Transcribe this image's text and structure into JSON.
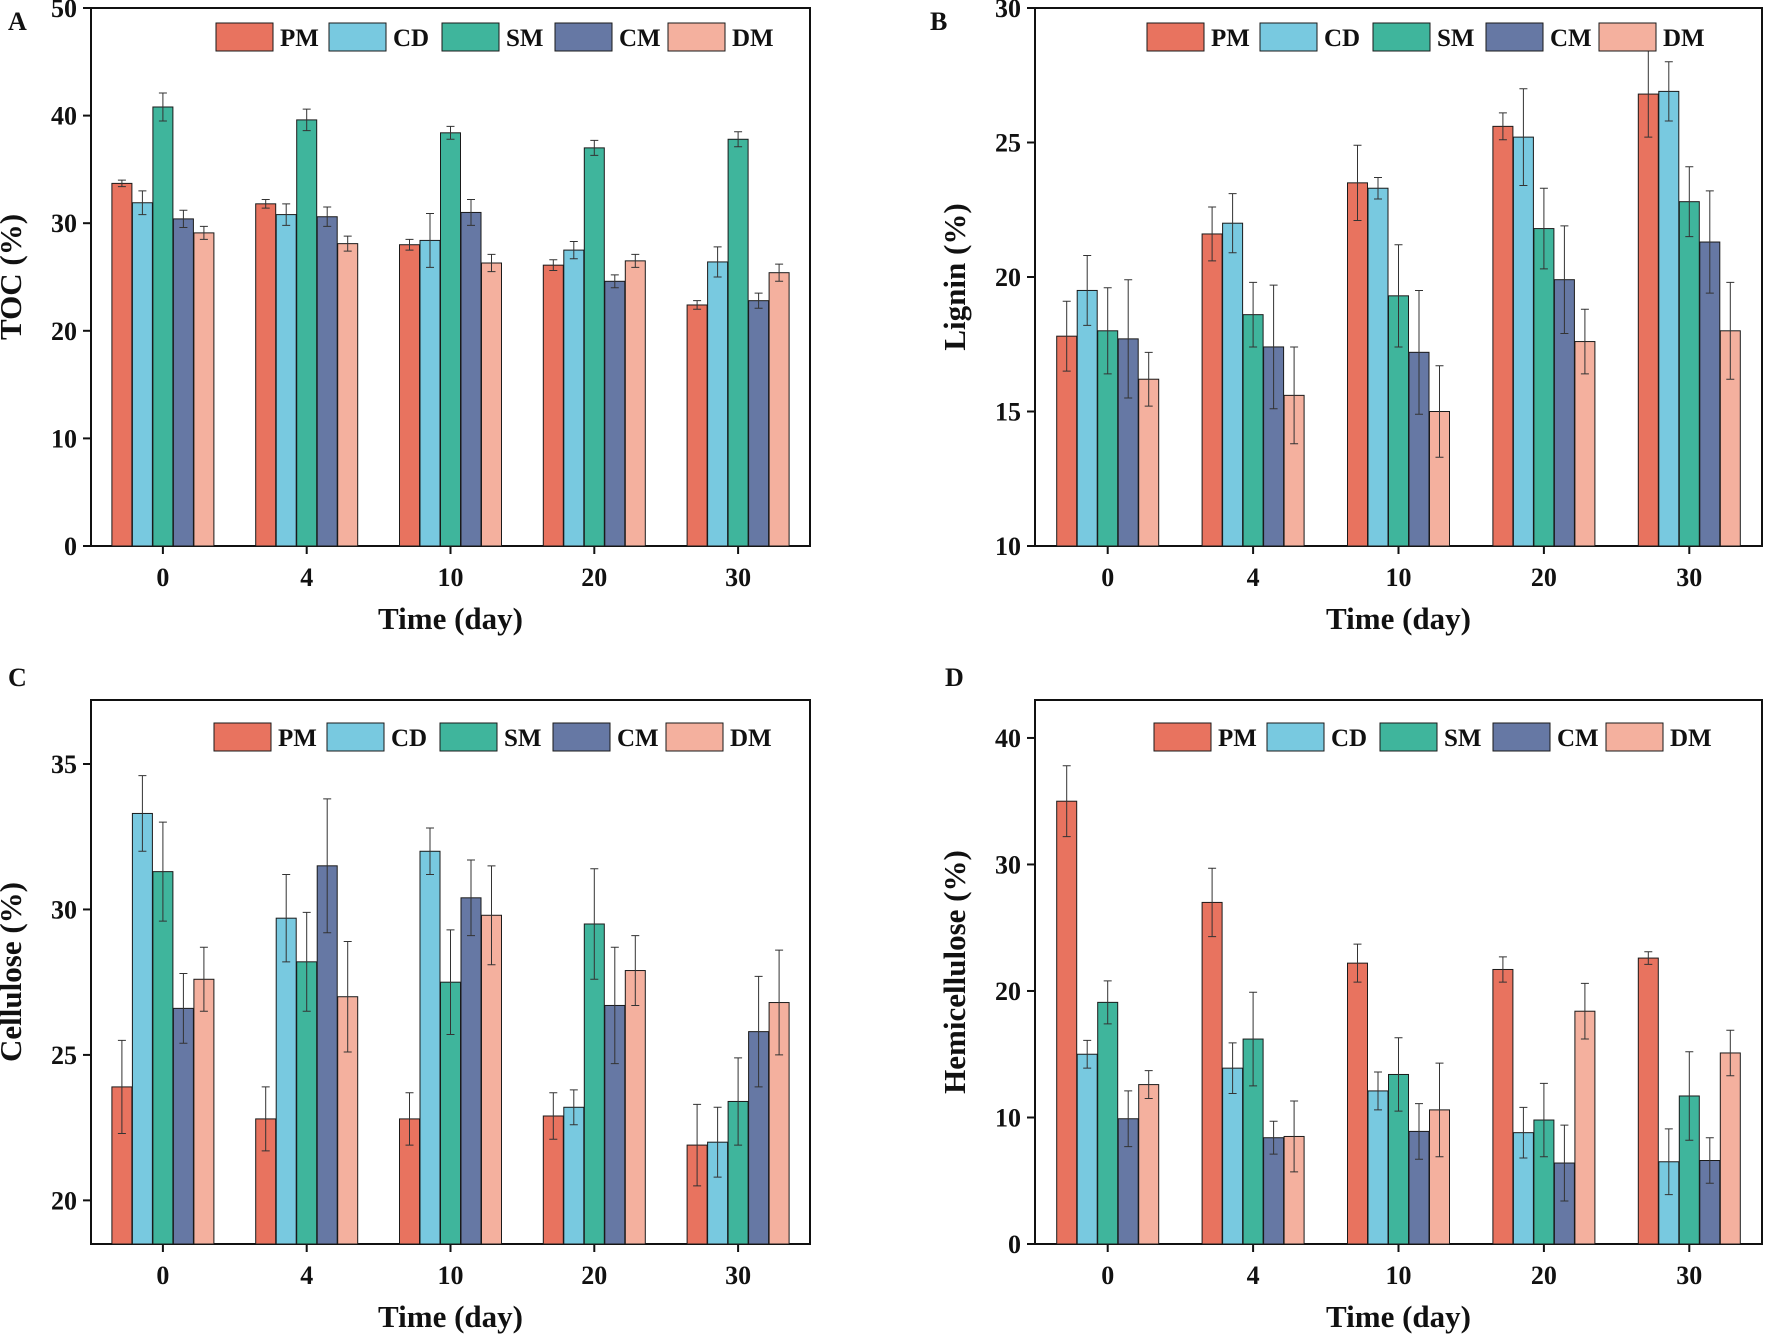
{
  "colors": {
    "PM": "#E8735F",
    "CD": "#78C9E0",
    "SM": "#3FB59C",
    "CM": "#6678A4",
    "DM": "#F4B09E"
  },
  "chart_data": [
    {
      "panel_label": "A",
      "type": "bar",
      "title": "",
      "xlabel": "Time (day)",
      "ylabel": "TOC (%)",
      "ylim": [
        0,
        50
      ],
      "yticks": [
        0,
        10,
        20,
        30,
        40,
        50
      ],
      "categories": [
        "0",
        "4",
        "10",
        "20",
        "30"
      ],
      "series": [
        {
          "name": "PM",
          "values": [
            33.7,
            31.8,
            28.0,
            26.1,
            22.4
          ],
          "errors": [
            0.3,
            0.4,
            0.5,
            0.5,
            0.4
          ]
        },
        {
          "name": "CD",
          "values": [
            31.9,
            30.8,
            28.4,
            27.5,
            26.4
          ],
          "errors": [
            1.1,
            1.0,
            2.5,
            0.8,
            1.4
          ]
        },
        {
          "name": "SM",
          "values": [
            40.8,
            39.6,
            38.4,
            37.0,
            37.8
          ],
          "errors": [
            1.3,
            1.0,
            0.6,
            0.7,
            0.7
          ]
        },
        {
          "name": "CM",
          "values": [
            30.4,
            30.6,
            31.0,
            24.6,
            22.8
          ],
          "errors": [
            0.8,
            0.9,
            1.2,
            0.6,
            0.7
          ]
        },
        {
          "name": "DM",
          "values": [
            29.1,
            28.1,
            26.3,
            26.5,
            25.4
          ],
          "errors": [
            0.6,
            0.7,
            0.8,
            0.6,
            0.8
          ]
        }
      ]
    },
    {
      "panel_label": "B",
      "type": "bar",
      "title": "",
      "xlabel": "Time (day)",
      "ylabel": "Lignin  (%)",
      "ylim": [
        10,
        30
      ],
      "yticks": [
        10,
        15,
        20,
        25,
        30
      ],
      "categories": [
        "0",
        "4",
        "10",
        "20",
        "30"
      ],
      "series": [
        {
          "name": "PM",
          "values": [
            17.8,
            21.6,
            23.5,
            25.6,
            26.8
          ],
          "errors": [
            1.3,
            1.0,
            1.4,
            0.5,
            1.6
          ]
        },
        {
          "name": "CD",
          "values": [
            19.5,
            22.0,
            23.3,
            25.2,
            26.9
          ],
          "errors": [
            1.3,
            1.1,
            0.4,
            1.8,
            1.1
          ]
        },
        {
          "name": "SM",
          "values": [
            18.0,
            18.6,
            19.3,
            21.8,
            22.8
          ],
          "errors": [
            1.6,
            1.2,
            1.9,
            1.5,
            1.3
          ]
        },
        {
          "name": "CM",
          "values": [
            17.7,
            17.4,
            17.2,
            19.9,
            21.3
          ],
          "errors": [
            2.2,
            2.3,
            2.3,
            2.0,
            1.9
          ]
        },
        {
          "name": "DM",
          "values": [
            16.2,
            15.6,
            15.0,
            17.6,
            18.0
          ],
          "errors": [
            1.0,
            1.8,
            1.7,
            1.2,
            1.8
          ]
        }
      ]
    },
    {
      "panel_label": "C",
      "type": "bar",
      "title": "",
      "xlabel": "Time (day)",
      "ylabel": "Cellulose  (%)",
      "ylim": [
        18.5,
        37.2
      ],
      "yticks": [
        20,
        25,
        30,
        35
      ],
      "categories": [
        "0",
        "4",
        "10",
        "20",
        "30"
      ],
      "series": [
        {
          "name": "PM",
          "values": [
            23.9,
            22.8,
            22.8,
            22.9,
            21.9
          ],
          "errors": [
            1.6,
            1.1,
            0.9,
            0.8,
            1.4
          ]
        },
        {
          "name": "CD",
          "values": [
            33.3,
            29.7,
            32.0,
            23.2,
            22.0
          ],
          "errors": [
            1.3,
            1.5,
            0.8,
            0.6,
            1.2
          ]
        },
        {
          "name": "SM",
          "values": [
            31.3,
            28.2,
            27.5,
            29.5,
            23.4
          ],
          "errors": [
            1.7,
            1.7,
            1.8,
            1.9,
            1.5
          ]
        },
        {
          "name": "CM",
          "values": [
            26.6,
            31.5,
            30.4,
            26.7,
            25.8
          ],
          "errors": [
            1.2,
            2.3,
            1.3,
            2.0,
            1.9
          ]
        },
        {
          "name": "DM",
          "values": [
            27.6,
            27.0,
            29.8,
            27.9,
            26.8
          ],
          "errors": [
            1.1,
            1.9,
            1.7,
            1.2,
            1.8
          ]
        }
      ]
    },
    {
      "panel_label": "D",
      "type": "bar",
      "title": "",
      "xlabel": "Time (day)",
      "ylabel": "Hemicellulose  (%)",
      "ylim": [
        0,
        43
      ],
      "yticks": [
        0,
        10,
        20,
        30,
        40
      ],
      "categories": [
        "0",
        "4",
        "10",
        "20",
        "30"
      ],
      "series": [
        {
          "name": "PM",
          "values": [
            35.0,
            27.0,
            22.2,
            21.7,
            22.6
          ],
          "errors": [
            2.8,
            2.7,
            1.5,
            1.0,
            0.5
          ]
        },
        {
          "name": "CD",
          "values": [
            15.0,
            13.9,
            12.1,
            8.8,
            6.5
          ],
          "errors": [
            1.1,
            2.0,
            1.5,
            2.0,
            2.6
          ]
        },
        {
          "name": "SM",
          "values": [
            19.1,
            16.2,
            13.4,
            9.8,
            11.7
          ],
          "errors": [
            1.7,
            3.7,
            2.9,
            2.9,
            3.5
          ]
        },
        {
          "name": "CM",
          "values": [
            9.9,
            8.4,
            8.9,
            6.4,
            6.6
          ],
          "errors": [
            2.2,
            1.3,
            2.2,
            3.0,
            1.8
          ]
        },
        {
          "name": "DM",
          "values": [
            12.6,
            8.5,
            10.6,
            18.4,
            15.1
          ],
          "errors": [
            1.1,
            2.8,
            3.7,
            2.2,
            1.8
          ]
        }
      ]
    }
  ]
}
